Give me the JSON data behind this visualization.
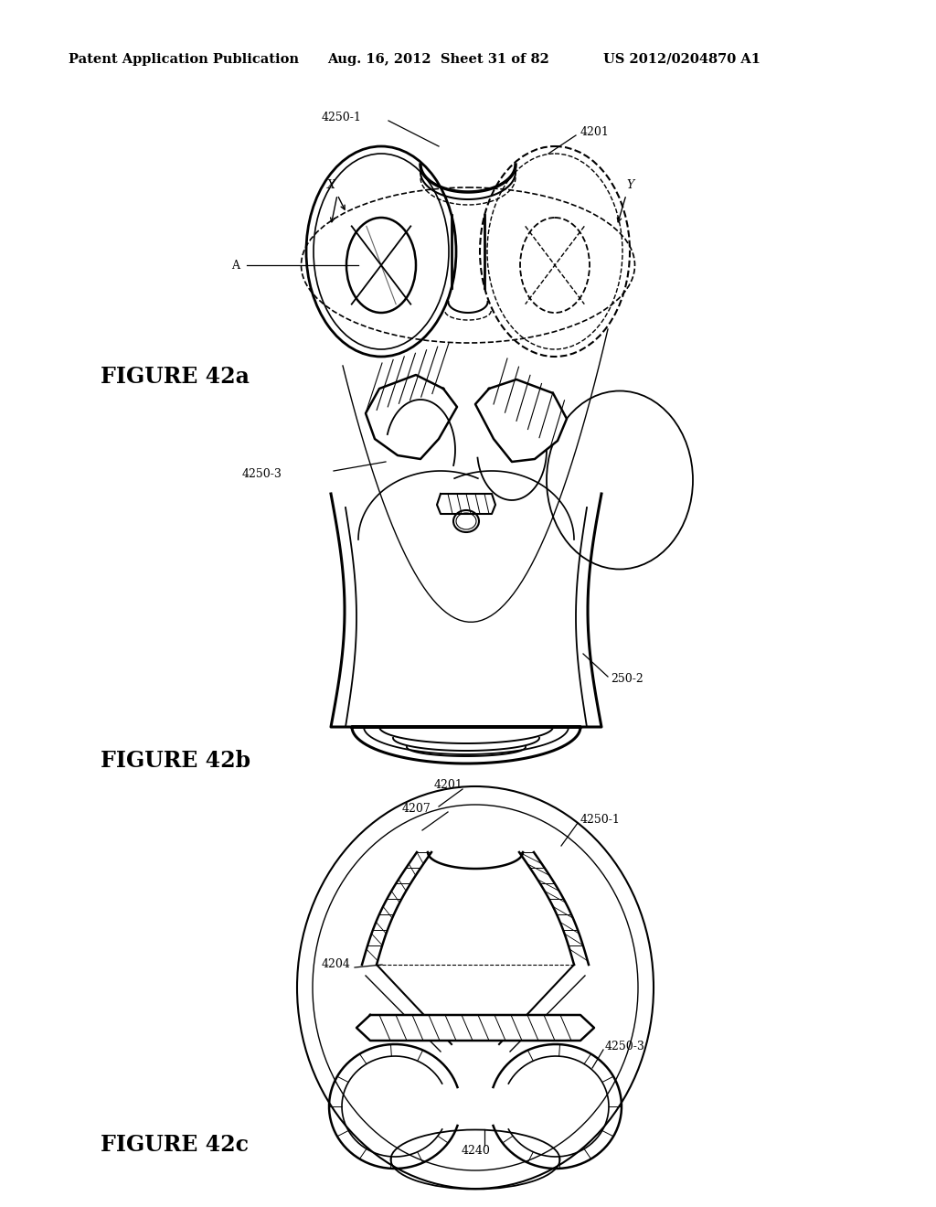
{
  "background_color": "#ffffff",
  "header_text": "Patent Application Publication",
  "header_date": "Aug. 16, 2012  Sheet 31 of 82",
  "header_patent": "US 2012/0204870 A1",
  "figure_labels": [
    "FIGURE 42a",
    "FIGURE 42b",
    "FIGURE 42c"
  ],
  "figure_label_fontsize": 17,
  "header_fontsize": 10.5,
  "line_color": "#000000"
}
